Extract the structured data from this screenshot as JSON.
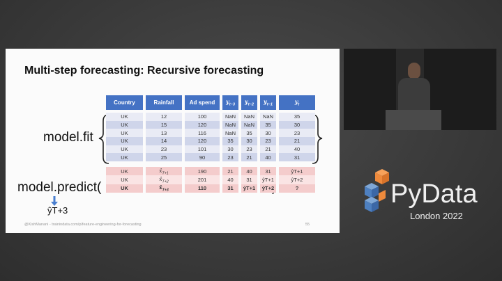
{
  "slide": {
    "title": "Multi-step forecasting: Recursive forecasting",
    "table": {
      "header": [
        "Country",
        "Rainfall",
        "Ad spend",
        "yt−3",
        "yt−2",
        "yt−1",
        "yt"
      ],
      "fit_rows": [
        [
          "UK",
          12,
          100,
          "NaN",
          "NaN",
          "NaN",
          35
        ],
        [
          "UK",
          15,
          120,
          "NaN",
          "NaN",
          35,
          30
        ],
        [
          "UK",
          13,
          116,
          "NaN",
          35,
          30,
          23
        ],
        [
          "UK",
          14,
          120,
          35,
          30,
          23,
          21
        ],
        [
          "UK",
          23,
          101,
          30,
          23,
          21,
          40
        ],
        [
          "UK",
          25,
          90,
          23,
          21,
          40,
          31
        ]
      ],
      "predict_rows": [
        [
          "UK",
          "x̂T+1",
          190,
          21,
          40,
          31,
          "ŷT+1"
        ],
        [
          "UK",
          "x̂T+2",
          201,
          40,
          31,
          "ŷT+1",
          "ŷT+2"
        ],
        [
          "UK",
          "x̂T+3",
          110,
          31,
          "ŷT+1",
          "ŷT+2",
          "?"
        ]
      ]
    },
    "labels": {
      "fit": "model.fit",
      "predict": "model.predict(",
      "close_paren": ")",
      "output": "ŷT+3"
    },
    "footer": "@KishManani - trainindata.com/p/feature-engineering-for-forecasting",
    "page_number": 55
  },
  "branding": {
    "logo": "PyData",
    "event": "London 2022"
  }
}
